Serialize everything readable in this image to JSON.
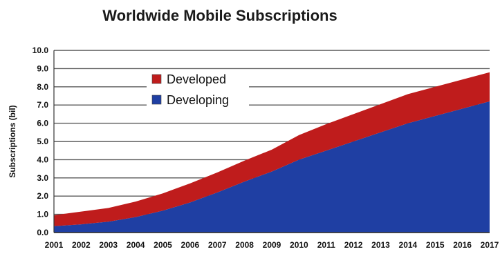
{
  "chart_data": {
    "type": "area",
    "stacked": true,
    "title": "Worldwide Mobile Subscriptions",
    "xlabel": "",
    "ylabel": "Subscriptions (bil)",
    "x": [
      "2001",
      "2002",
      "2003",
      "2004",
      "2005",
      "2006",
      "2007",
      "2008",
      "2009",
      "2010",
      "2011",
      "2012",
      "2013",
      "2014",
      "2015",
      "2016",
      "2017"
    ],
    "ylim": [
      0,
      10
    ],
    "yticks": [
      "0.0",
      "1.0",
      "2.0",
      "3.0",
      "4.0",
      "5.0",
      "6.0",
      "7.0",
      "8.0",
      "9.0",
      "10.0"
    ],
    "grid": true,
    "legend_position": "upper-left inside plot",
    "series": [
      {
        "name": "Developing",
        "color": "#1f3fa3",
        "values": [
          0.35,
          0.45,
          0.6,
          0.85,
          1.2,
          1.65,
          2.2,
          2.8,
          3.35,
          4.0,
          4.5,
          5.0,
          5.5,
          6.0,
          6.4,
          6.8,
          7.2
        ]
      },
      {
        "name": "Developed",
        "color": "#bf1c1c",
        "values": [
          0.6,
          0.7,
          0.75,
          0.85,
          0.95,
          1.05,
          1.1,
          1.15,
          1.2,
          1.35,
          1.45,
          1.5,
          1.55,
          1.6,
          1.6,
          1.6,
          1.6
        ]
      }
    ],
    "legend": [
      {
        "name": "Developed",
        "color": "#bf1c1c"
      },
      {
        "name": "Developing",
        "color": "#1f3fa3"
      }
    ],
    "colors": {
      "gridline": "#5a5a5a",
      "axis": "#333333"
    }
  }
}
